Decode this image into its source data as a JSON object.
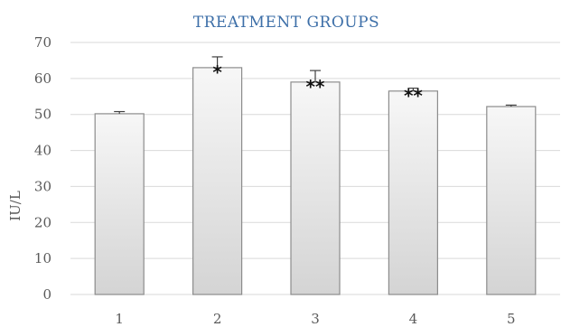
{
  "chart_data": {
    "type": "bar",
    "title": "TREATMENT GROUPS",
    "xlabel": "",
    "ylabel": "IU/L",
    "ylim": [
      0,
      70
    ],
    "yticks": [
      0,
      10,
      20,
      30,
      40,
      50,
      60,
      70
    ],
    "grid": true,
    "categories": [
      "1",
      "2",
      "3",
      "4",
      "5"
    ],
    "values": [
      50.2,
      63.0,
      59.0,
      56.5,
      52.2
    ],
    "errors": [
      0.6,
      3.0,
      3.2,
      0.8,
      0.4
    ],
    "annotations": [
      "",
      "*",
      "**",
      "**",
      ""
    ]
  }
}
